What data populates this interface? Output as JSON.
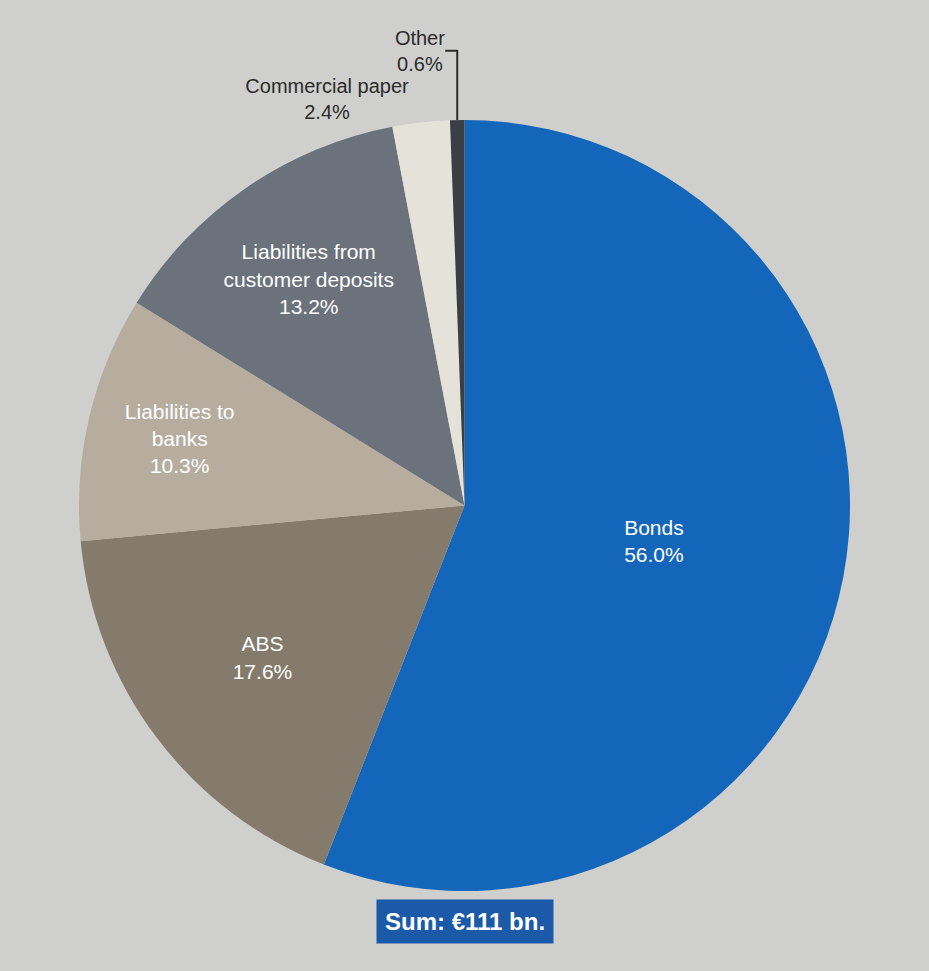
{
  "chart_data": {
    "type": "pie",
    "categories": [
      "Bonds",
      "ABS",
      "Liabilities to banks",
      "Liabilities from customer deposits",
      "Commercial paper",
      "Other"
    ],
    "values": [
      56.0,
      17.6,
      10.3,
      13.2,
      2.4,
      0.6
    ],
    "value_labels": [
      "56.0%",
      "17.6%",
      "10.3%",
      "13.2%",
      "2.4%",
      "0.6%"
    ],
    "colors": [
      "#1466bb",
      "#857b6c",
      "#b6ad9f",
      "#6b727b",
      "#e5e2da",
      "#3a3f45"
    ],
    "data_labels": true,
    "annotation": "Sum: €111 bn."
  }
}
